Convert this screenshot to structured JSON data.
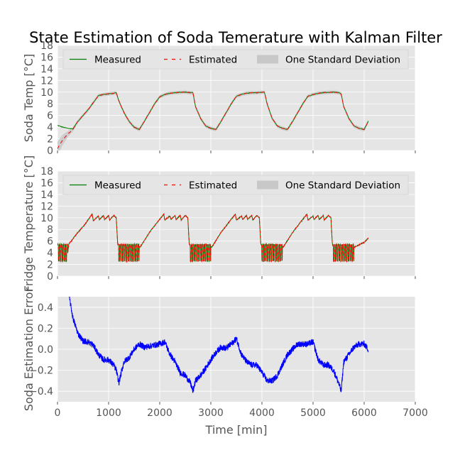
{
  "figure": {
    "title": "State Estimation of Soda Temerature with Kalman Filter",
    "x_axis": {
      "label": "Time [min]",
      "range": [
        0,
        7000
      ],
      "ticks": [
        "0",
        "1000",
        "2000",
        "3000",
        "4000",
        "5000",
        "6000",
        "7000"
      ]
    },
    "colors": {
      "background": "#e5e5e5",
      "grid": "#ffffff",
      "measured": "#008000",
      "estimated": "#ff0000",
      "band": "#c8c8c8",
      "error": "#0000ff"
    }
  },
  "chart_data": [
    {
      "type": "line",
      "panel": "top",
      "ylabel": "Soda Temp [°C]",
      "ylim": [
        0,
        18
      ],
      "yticks": [
        "0",
        "2",
        "4",
        "6",
        "8",
        "10",
        "12",
        "14",
        "16",
        "18"
      ],
      "grid": true,
      "legend_placement": "top, horizontal",
      "legend": {
        "measured": "Measured",
        "estimated": "Estimated",
        "band": "One Standard Deviation"
      },
      "x": [
        0,
        100,
        200,
        300,
        400,
        500,
        600,
        700,
        800,
        900,
        1000,
        1100,
        1150,
        1200,
        1300,
        1400,
        1500,
        1600,
        1700,
        1800,
        1900,
        2000,
        2100,
        2200,
        2300,
        2500,
        2600,
        2650,
        2700,
        2800,
        2900,
        3000,
        3100,
        3200,
        3300,
        3400,
        3500,
        3600,
        3700,
        3800,
        3900,
        4050,
        4100,
        4200,
        4300,
        4400,
        4500,
        4600,
        4700,
        4800,
        4900,
        5000,
        5100,
        5200,
        5400,
        5500,
        5550,
        5600,
        5700,
        5800,
        5900,
        6000,
        6080
      ],
      "series": [
        {
          "name": "Measured",
          "values": [
            4.3,
            4.0,
            3.8,
            3.7,
            5.0,
            6.0,
            7.0,
            8.2,
            9.4,
            9.6,
            9.7,
            9.8,
            9.9,
            8.5,
            6.5,
            5.0,
            4.0,
            3.6,
            5.0,
            6.5,
            8.0,
            9.2,
            9.6,
            9.8,
            9.9,
            10.0,
            9.9,
            9.9,
            7.5,
            5.5,
            4.2,
            3.8,
            3.6,
            5.0,
            6.5,
            8.0,
            9.3,
            9.6,
            9.8,
            9.9,
            9.9,
            10.0,
            8.0,
            5.5,
            4.2,
            3.8,
            3.6,
            5.0,
            6.5,
            8.0,
            9.3,
            9.6,
            9.8,
            9.9,
            10.0,
            9.9,
            9.7,
            7.5,
            5.5,
            4.2,
            3.8,
            3.6,
            5.0
          ]
        },
        {
          "name": "Estimated",
          "values": [
            0.3,
            1.8,
            2.8,
            3.6,
            5.0,
            6.0,
            7.0,
            8.2,
            9.4,
            9.6,
            9.7,
            9.8,
            9.9,
            8.5,
            6.5,
            5.0,
            4.0,
            3.6,
            5.0,
            6.5,
            8.0,
            9.2,
            9.6,
            9.8,
            9.9,
            10.0,
            9.9,
            9.9,
            7.5,
            5.5,
            4.2,
            3.8,
            3.6,
            5.0,
            6.5,
            8.0,
            9.3,
            9.6,
            9.8,
            9.9,
            9.9,
            10.0,
            8.0,
            5.5,
            4.2,
            3.8,
            3.6,
            5.0,
            6.5,
            8.0,
            9.3,
            9.6,
            9.8,
            9.9,
            10.0,
            9.9,
            9.7,
            7.5,
            5.5,
            4.2,
            3.8,
            3.6,
            5.0
          ]
        }
      ],
      "band_halfwidth": [
        1.2,
        0.9,
        0.5,
        0.35,
        0.3,
        0.3,
        0.3,
        0.3,
        0.3,
        0.3,
        0.3,
        0.3,
        0.3,
        0.3,
        0.3,
        0.3,
        0.3,
        0.3,
        0.3,
        0.3,
        0.3,
        0.3,
        0.3,
        0.3,
        0.3,
        0.3,
        0.3,
        0.3,
        0.3,
        0.3,
        0.3,
        0.3,
        0.3,
        0.3,
        0.3,
        0.3,
        0.3,
        0.3,
        0.3,
        0.3,
        0.3,
        0.3,
        0.3,
        0.3,
        0.3,
        0.3,
        0.3,
        0.3,
        0.3,
        0.3,
        0.3,
        0.3,
        0.3,
        0.3,
        0.3,
        0.3,
        0.3,
        0.3,
        0.3,
        0.3,
        0.3,
        0.3,
        0.3
      ]
    },
    {
      "type": "line",
      "panel": "middle",
      "ylabel": "Fridge Temperature [°C]",
      "ylim": [
        0,
        18
      ],
      "yticks": [
        "0",
        "2",
        "4",
        "6",
        "8",
        "10",
        "12",
        "14",
        "16",
        "18"
      ],
      "grid": true,
      "legend_placement": "top, horizontal",
      "legend": {
        "measured": "Measured",
        "estimated": "Estimated",
        "band": "One Standard Deviation"
      },
      "x": [
        0,
        200,
        220,
        400,
        550,
        650,
        680,
        700,
        800,
        820,
        900,
        920,
        1000,
        1020,
        1100,
        1150,
        1180,
        1600,
        1620,
        1800,
        1950,
        2050,
        2080,
        2100,
        2200,
        2220,
        2300,
        2320,
        2400,
        2420,
        2500,
        2550,
        2580,
        3000,
        3020,
        3200,
        3350,
        3450,
        3480,
        3500,
        3600,
        3620,
        3700,
        3720,
        3800,
        3820,
        3900,
        3950,
        3980,
        4400,
        4420,
        4600,
        4750,
        4850,
        4880,
        4900,
        5000,
        5020,
        5100,
        5120,
        5200,
        5220,
        5300,
        5350,
        5380,
        5800,
        5820,
        6000,
        6080
      ],
      "series": [
        {
          "name": "Measured",
          "values": [
            4.5,
            4.0,
            5.5,
            7.5,
            9.0,
            10.3,
            10.6,
            9.5,
            10.3,
            9.7,
            10.4,
            9.7,
            10.4,
            9.6,
            10.4,
            10.0,
            5.0,
            5.0,
            5.0,
            7.5,
            9.2,
            10.3,
            10.6,
            9.6,
            10.3,
            9.7,
            10.4,
            9.7,
            10.4,
            9.6,
            10.4,
            10.0,
            5.0,
            5.0,
            5.0,
            7.5,
            9.2,
            10.3,
            10.6,
            9.6,
            10.3,
            9.7,
            10.4,
            9.7,
            10.4,
            9.6,
            10.4,
            10.0,
            5.0,
            5.0,
            5.0,
            7.5,
            9.2,
            10.3,
            10.6,
            9.6,
            10.3,
            9.7,
            10.4,
            9.7,
            10.4,
            9.6,
            10.4,
            10.0,
            5.0,
            5.0,
            5.0,
            5.8,
            6.5
          ]
        },
        {
          "name": "Estimated",
          "values": [
            4.5,
            4.0,
            5.5,
            7.5,
            9.0,
            10.3,
            10.6,
            9.5,
            10.3,
            9.7,
            10.4,
            9.7,
            10.4,
            9.6,
            10.4,
            10.0,
            5.0,
            5.0,
            5.0,
            7.5,
            9.2,
            10.3,
            10.6,
            9.6,
            10.3,
            9.7,
            10.4,
            9.7,
            10.4,
            9.6,
            10.4,
            10.0,
            5.0,
            5.0,
            5.0,
            7.5,
            9.2,
            10.3,
            10.6,
            9.6,
            10.3,
            9.7,
            10.4,
            9.7,
            10.4,
            9.6,
            10.4,
            10.0,
            5.0,
            5.0,
            5.0,
            7.5,
            9.2,
            10.3,
            10.6,
            9.6,
            10.3,
            9.7,
            10.4,
            9.7,
            10.4,
            9.6,
            10.4,
            10.0,
            5.0,
            5.0,
            5.0,
            5.8,
            6.5
          ]
        }
      ],
      "oscillation_range": [
        2.5,
        5.5
      ]
    },
    {
      "type": "line",
      "panel": "bottom",
      "ylabel": "Soda Estimation Error",
      "ylim": [
        -0.5,
        0.5
      ],
      "yticks": [
        "−0.4",
        "−0.2",
        "0.0",
        "0.2",
        "0.4"
      ],
      "ytick_values": [
        -0.4,
        -0.2,
        0.0,
        0.2,
        0.4
      ],
      "grid": true,
      "x": [
        230,
        300,
        400,
        500,
        600,
        700,
        800,
        900,
        1000,
        1100,
        1150,
        1200,
        1300,
        1400,
        1500,
        1600,
        1700,
        1800,
        1900,
        2000,
        2100,
        2200,
        2300,
        2400,
        2500,
        2600,
        2650,
        2700,
        2800,
        2900,
        3000,
        3100,
        3200,
        3300,
        3400,
        3500,
        3600,
        3700,
        3800,
        3900,
        4000,
        4100,
        4200,
        4300,
        4400,
        4500,
        4600,
        4700,
        4800,
        4900,
        5000,
        5100,
        5200,
        5300,
        5400,
        5500,
        5550,
        5600,
        5700,
        5800,
        5900,
        6000,
        6080
      ],
      "series": [
        {
          "name": "Error",
          "values": [
            0.5,
            0.3,
            0.15,
            0.08,
            0.07,
            0.04,
            -0.05,
            -0.1,
            -0.1,
            -0.15,
            -0.2,
            -0.32,
            -0.12,
            -0.08,
            0.0,
            0.05,
            0.02,
            0.03,
            0.04,
            0.05,
            0.07,
            -0.05,
            -0.12,
            -0.22,
            -0.25,
            -0.32,
            -0.4,
            -0.3,
            -0.25,
            -0.18,
            -0.1,
            -0.03,
            0.02,
            0.01,
            0.05,
            0.1,
            -0.05,
            -0.12,
            -0.15,
            -0.15,
            -0.22,
            -0.3,
            -0.3,
            -0.25,
            -0.15,
            -0.05,
            0.0,
            0.05,
            0.05,
            0.05,
            0.07,
            -0.1,
            -0.15,
            -0.15,
            -0.2,
            -0.32,
            -0.4,
            -0.12,
            -0.05,
            0.02,
            0.05,
            0.05,
            0.0
          ]
        }
      ],
      "noise_amplitude": 0.03
    }
  ]
}
